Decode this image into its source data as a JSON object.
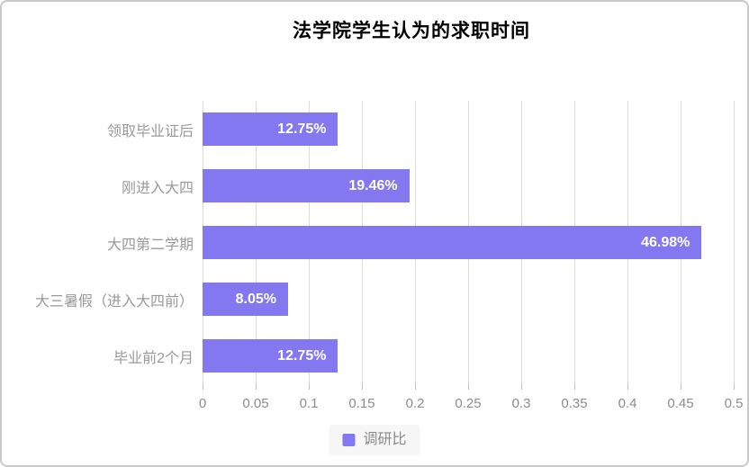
{
  "chart_data": {
    "type": "bar",
    "orientation": "horizontal",
    "title": "法学院学生认为的求职时间",
    "categories": [
      "领取毕业证后",
      "刚进入大四",
      "大四第二学期",
      "大三暑假（进入大四前）",
      "毕业前2个月"
    ],
    "series": [
      {
        "name": "调研比",
        "values": [
          0.1275,
          0.1946,
          0.4698,
          0.0805,
          0.1275
        ],
        "value_labels": [
          "12.75%",
          "19.46%",
          "46.98%",
          "8.05%",
          "12.75%"
        ]
      }
    ],
    "xlim": [
      0,
      0.5
    ],
    "x_ticks": [
      0,
      0.05,
      0.1,
      0.15,
      0.2,
      0.25,
      0.3,
      0.35,
      0.4,
      0.45,
      0.5
    ],
    "x_tick_labels": [
      "0",
      "0.05",
      "0.1",
      "0.15",
      "0.2",
      "0.25",
      "0.3",
      "0.35",
      "0.4",
      "0.45",
      "0.5"
    ],
    "grid": true,
    "legend_position": "bottom"
  },
  "colors": {
    "bar": "#8478f0",
    "gridline": "#dcdcdc",
    "tick": "#c2c2c2",
    "title_text": "#000000",
    "category_text": "#999999",
    "tick_text": "#8c8c8c",
    "value_text": "#ffffff",
    "card_border": "#c9c9c9",
    "legend_background": "#f7f7f7"
  },
  "legend": {
    "label": "调研比"
  }
}
